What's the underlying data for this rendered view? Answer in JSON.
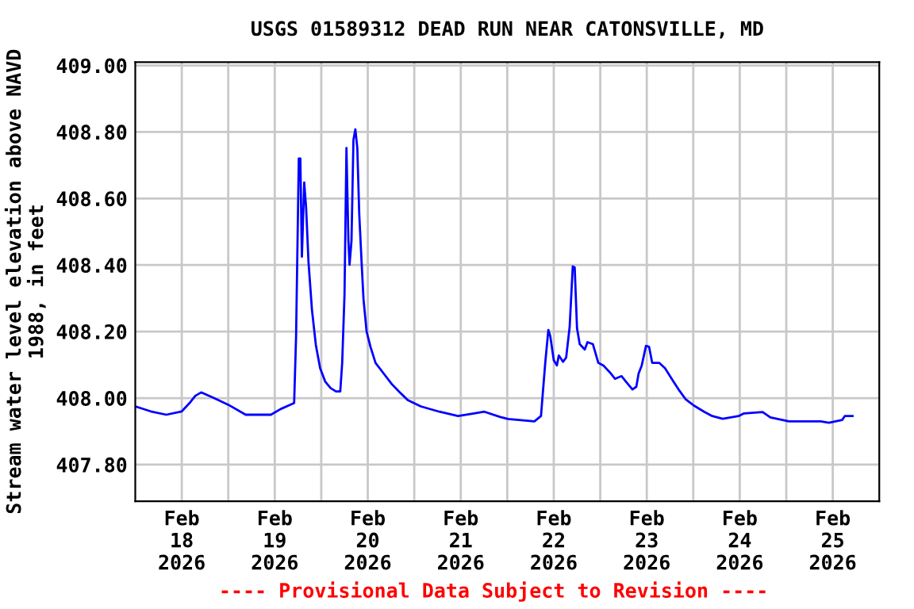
{
  "chart_data": {
    "type": "line",
    "title": "USGS 01589312 DEAD RUN NEAR CATONSVILLE, MD",
    "ylabel": "Stream water level elevation above NAVD\n1988, in feet",
    "annotations": [
      "---- Provisional Data Subject to Revision ----"
    ],
    "grid": true,
    "legend": false,
    "marker": "none",
    "line_style": "solid",
    "xlim": [
      "2026-02-18T00:00",
      "2026-02-26T00:00"
    ],
    "xticks": [
      {
        "value": "2026-02-18T12:00",
        "label": "Feb\n18\n2026"
      },
      {
        "value": "2026-02-19T00:00",
        "label": null
      },
      {
        "value": "2026-02-19T12:00",
        "label": "Feb\n19\n2026"
      },
      {
        "value": "2026-02-20T00:00",
        "label": null
      },
      {
        "value": "2026-02-20T12:00",
        "label": "Feb\n20\n2026"
      },
      {
        "value": "2026-02-21T00:00",
        "label": null
      },
      {
        "value": "2026-02-21T12:00",
        "label": "Feb\n21\n2026"
      },
      {
        "value": "2026-02-22T00:00",
        "label": null
      },
      {
        "value": "2026-02-22T12:00",
        "label": "Feb\n22\n2026"
      },
      {
        "value": "2026-02-23T00:00",
        "label": null
      },
      {
        "value": "2026-02-23T12:00",
        "label": "Feb\n23\n2026"
      },
      {
        "value": "2026-02-24T00:00",
        "label": null
      },
      {
        "value": "2026-02-24T12:00",
        "label": "Feb\n24\n2026"
      },
      {
        "value": "2026-02-25T00:00",
        "label": null
      },
      {
        "value": "2026-02-25T12:00",
        "label": "Feb\n25\n2026"
      }
    ],
    "ylim": [
      407.69,
      409.01
    ],
    "yticks": [
      {
        "value": 407.8,
        "label": "407.80"
      },
      {
        "value": 408.0,
        "label": "408.00"
      },
      {
        "value": 408.2,
        "label": "408.20"
      },
      {
        "value": 408.4,
        "label": "408.40"
      },
      {
        "value": 408.6,
        "label": "408.60"
      },
      {
        "value": 408.8,
        "label": "408.80"
      },
      {
        "value": 409.0,
        "label": "409.00"
      }
    ],
    "x": [
      "2026-02-18T00:00",
      "2026-02-18T04:00",
      "2026-02-18T08:00",
      "2026-02-18T12:00",
      "2026-02-18T14:00",
      "2026-02-18T15:30",
      "2026-02-18T17:00",
      "2026-02-18T20:00",
      "2026-02-19T00:00",
      "2026-02-19T04:30",
      "2026-02-19T11:00",
      "2026-02-19T13:30",
      "2026-02-19T17:00",
      "2026-02-19T17:30",
      "2026-02-19T18:12",
      "2026-02-19T18:36",
      "2026-02-19T19:00",
      "2026-02-19T19:36",
      "2026-02-19T20:06",
      "2026-02-19T20:42",
      "2026-02-19T21:36",
      "2026-02-19T22:36",
      "2026-02-19T23:42",
      "2026-02-20T01:00",
      "2026-02-20T02:24",
      "2026-02-20T03:48",
      "2026-02-20T04:54",
      "2026-02-20T05:24",
      "2026-02-20T06:00",
      "2026-02-20T06:30",
      "2026-02-20T07:00",
      "2026-02-20T07:18",
      "2026-02-20T07:48",
      "2026-02-20T08:18",
      "2026-02-20T08:48",
      "2026-02-20T09:18",
      "2026-02-20T09:48",
      "2026-02-20T10:24",
      "2026-02-20T10:54",
      "2026-02-20T11:42",
      "2026-02-20T12:42",
      "2026-02-20T14:00",
      "2026-02-20T16:06",
      "2026-02-20T18:12",
      "2026-02-20T20:12",
      "2026-02-20T22:18",
      "2026-02-21T01:42",
      "2026-02-21T06:30",
      "2026-02-21T11:18",
      "2026-02-21T15:24",
      "2026-02-21T18:06",
      "2026-02-21T22:12",
      "2026-02-22T00:12",
      "2026-02-22T07:00",
      "2026-02-22T08:42",
      "2026-02-22T09:48",
      "2026-02-22T10:36",
      "2026-02-22T11:06",
      "2026-02-22T12:00",
      "2026-02-22T12:48",
      "2026-02-22T13:18",
      "2026-02-22T14:24",
      "2026-02-22T15:12",
      "2026-02-22T16:06",
      "2026-02-22T16:54",
      "2026-02-22T17:24",
      "2026-02-22T18:00",
      "2026-02-22T18:42",
      "2026-02-22T20:00",
      "2026-02-22T20:42",
      "2026-02-22T22:06",
      "2026-02-22T23:30",
      "2026-02-23T00:48",
      "2026-02-23T02:30",
      "2026-02-23T03:48",
      "2026-02-23T05:30",
      "2026-02-23T06:36",
      "2026-02-23T08:18",
      "2026-02-23T09:18",
      "2026-02-23T09:54",
      "2026-02-23T10:42",
      "2026-02-23T11:48",
      "2026-02-23T12:36",
      "2026-02-23T13:24",
      "2026-02-23T15:12",
      "2026-02-23T16:42",
      "2026-02-23T18:36",
      "2026-02-23T20:12",
      "2026-02-23T22:00",
      "2026-02-24T00:06",
      "2026-02-24T02:48",
      "2026-02-24T04:54",
      "2026-02-24T07:36",
      "2026-02-24T11:42",
      "2026-02-24T13:06",
      "2026-02-24T17:54",
      "2026-02-24T19:54",
      "2026-02-25T00:42",
      "2026-02-25T08:54",
      "2026-02-25T11:00",
      "2026-02-25T14:24",
      "2026-02-25T15:06",
      "2026-02-25T17:06"
    ],
    "series": [
      {
        "color": "#0000ff",
        "values": [
          407.975,
          407.96,
          407.95,
          407.96,
          407.985,
          408.007,
          408.017,
          408.002,
          407.98,
          407.95,
          407.95,
          407.967,
          407.985,
          408.185,
          408.72,
          408.72,
          408.425,
          408.648,
          408.57,
          408.41,
          408.265,
          408.16,
          408.09,
          408.05,
          408.03,
          408.02,
          408.02,
          408.106,
          408.313,
          408.752,
          408.473,
          408.401,
          408.473,
          408.776,
          408.808,
          408.752,
          408.553,
          408.41,
          408.297,
          408.2,
          408.154,
          408.106,
          408.074,
          408.042,
          408.018,
          407.994,
          407.975,
          407.959,
          407.946,
          407.954,
          407.959,
          407.943,
          407.937,
          407.93,
          407.946,
          408.106,
          408.205,
          408.186,
          408.114,
          408.098,
          408.128,
          408.109,
          408.122,
          408.214,
          408.396,
          408.393,
          408.21,
          408.162,
          408.146,
          408.168,
          408.162,
          408.106,
          408.098,
          408.077,
          408.058,
          408.066,
          408.05,
          408.026,
          408.034,
          408.074,
          408.098,
          408.157,
          408.154,
          408.106,
          408.106,
          408.09,
          408.055,
          408.026,
          407.997,
          407.978,
          407.959,
          407.946,
          407.938,
          407.946,
          407.954,
          407.958,
          407.942,
          407.93,
          407.93,
          407.926,
          407.934,
          407.946,
          407.946
        ]
      }
    ]
  }
}
